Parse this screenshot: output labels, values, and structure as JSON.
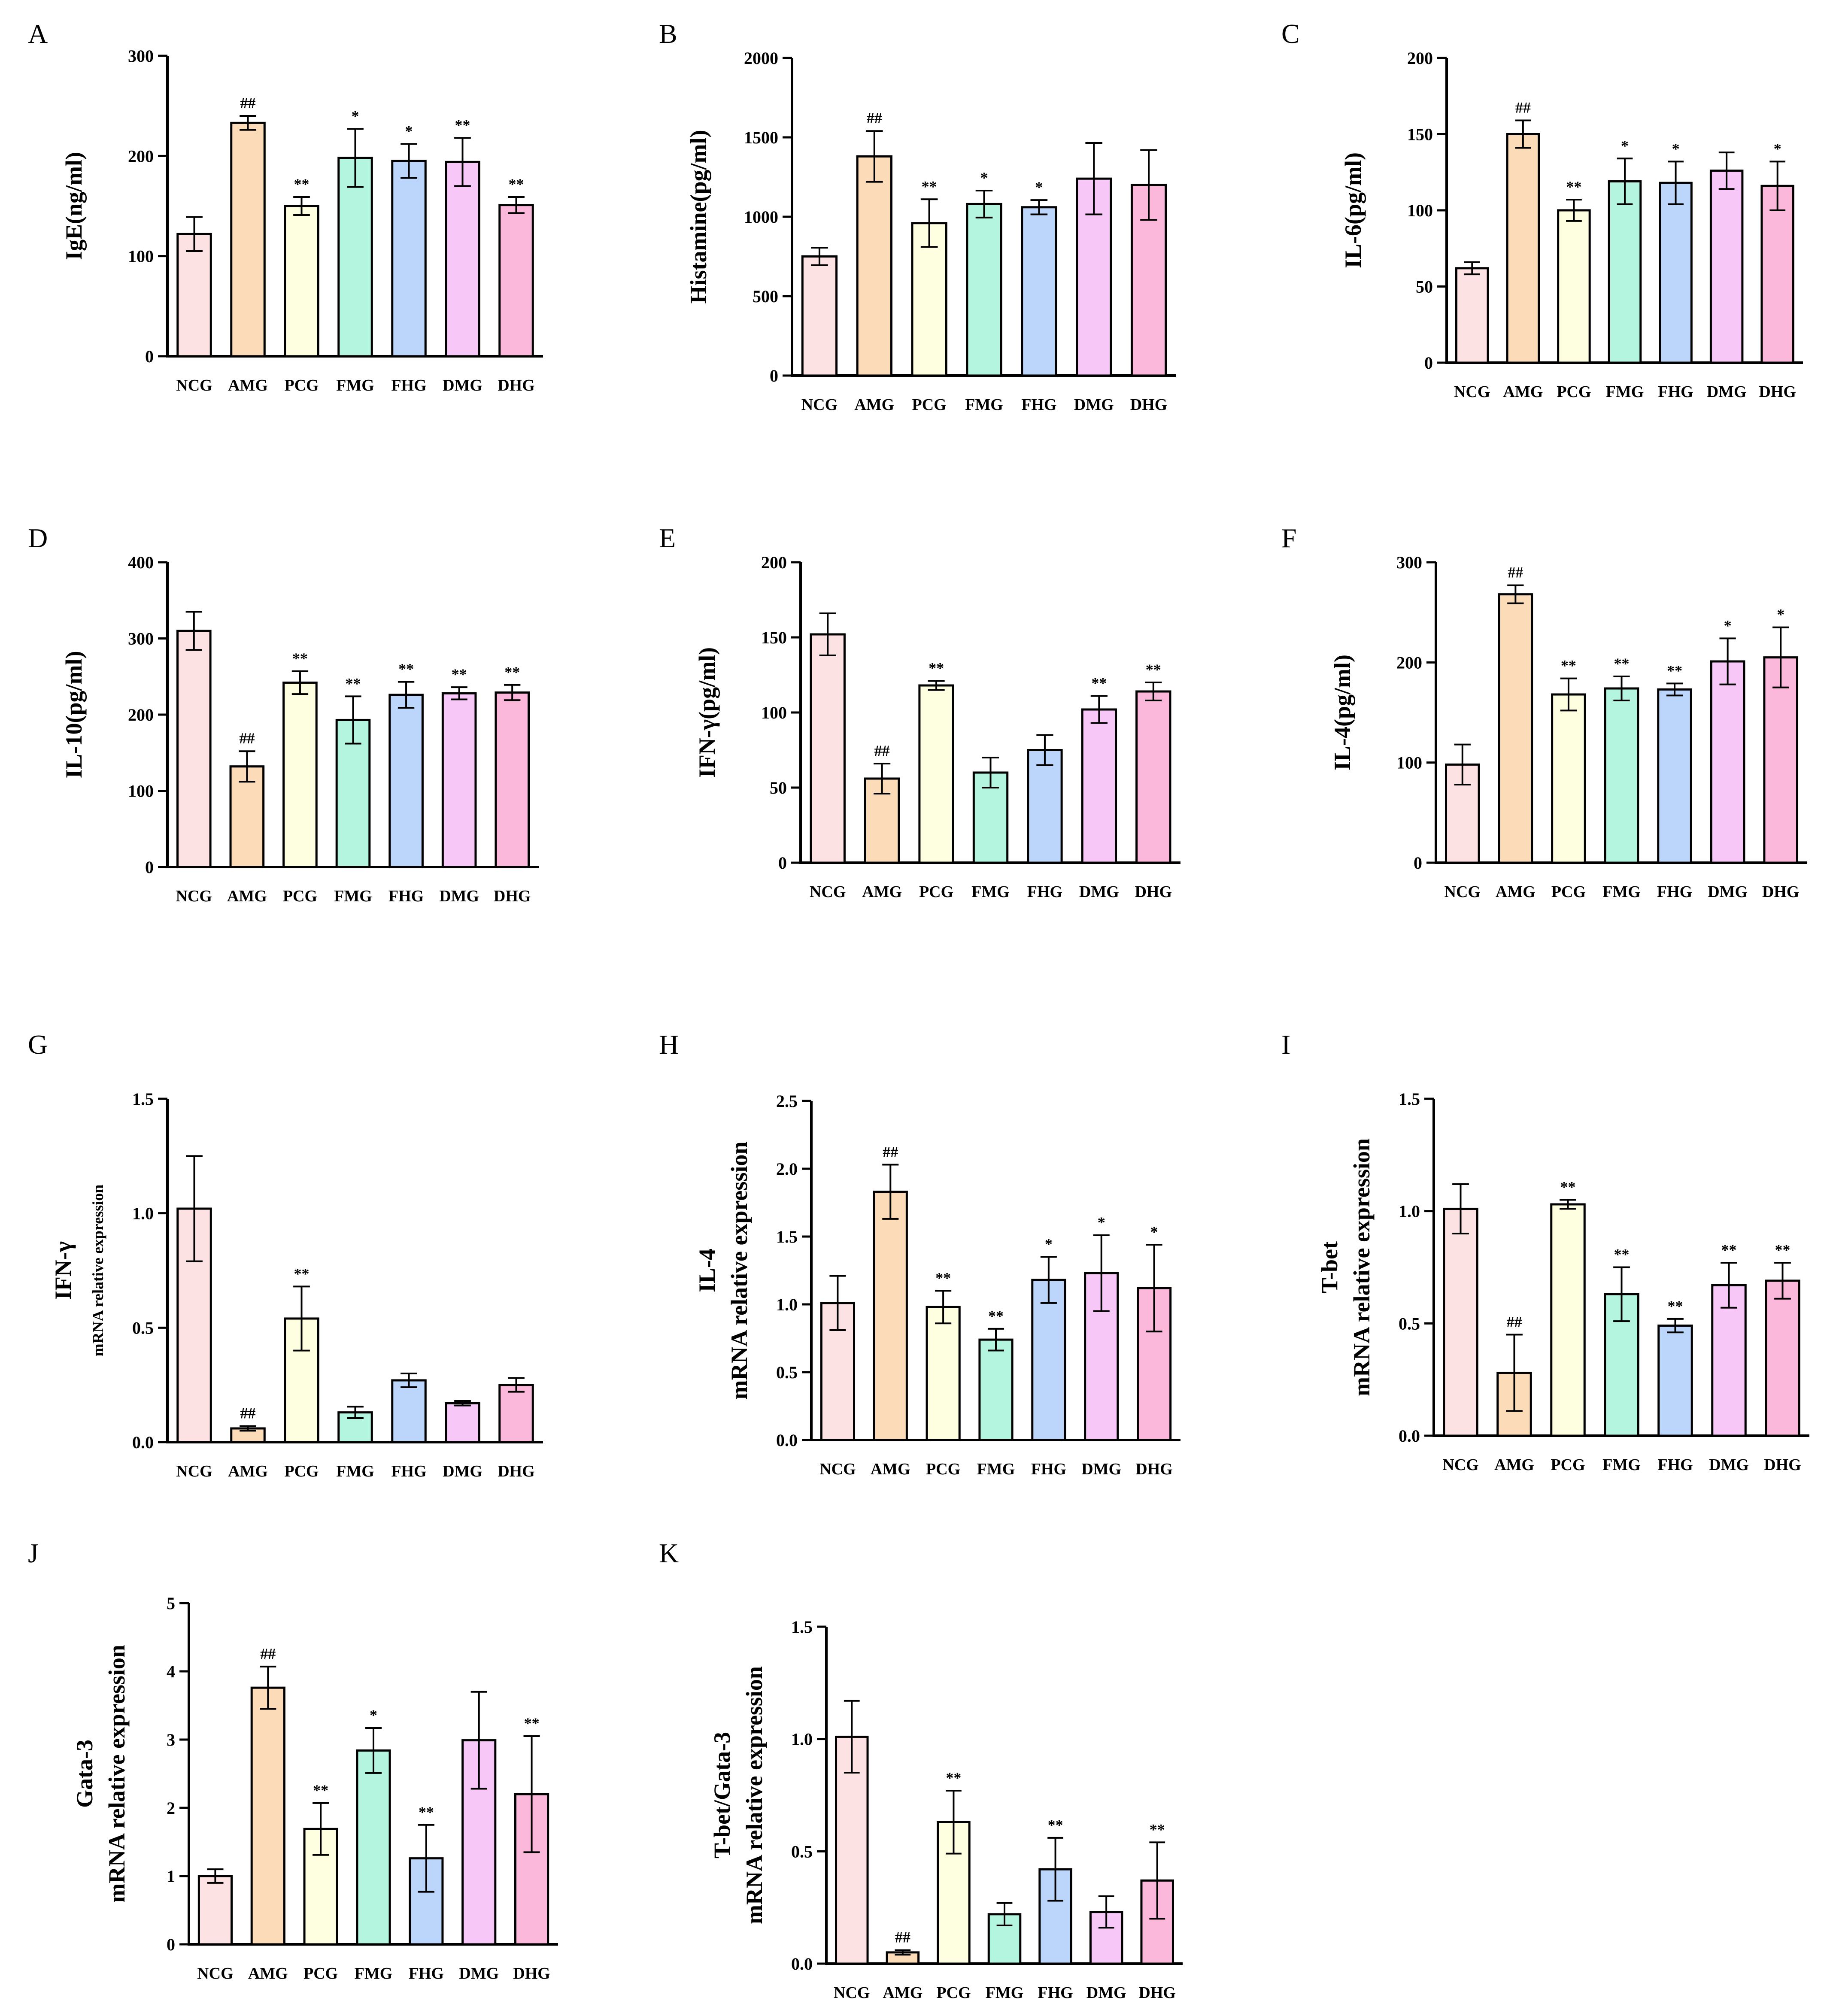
{
  "colors": {
    "NCG": "#fde2e4",
    "AMG": "#fcdcb8",
    "PCG": "#fefee0",
    "FMG": "#b4f5e0",
    "FHG": "#bcd6fb",
    "DMG": "#f7c8f7",
    "DHG": "#fbb8da"
  },
  "chart_data": [
    {
      "id": "A",
      "label": "A",
      "type": "bar",
      "ylabel": "IgE(ng/ml)",
      "ylabel2": "",
      "ylim": [
        0,
        300
      ],
      "yticks": [
        "0",
        "100",
        "200",
        "300"
      ],
      "categories": [
        "NCG",
        "AMG",
        "PCG",
        "FMG",
        "FHG",
        "DMG",
        "DHG"
      ],
      "values": [
        122,
        233,
        150,
        198,
        195,
        194,
        151
      ],
      "errors": [
        17,
        7,
        9,
        29,
        17,
        24,
        8
      ],
      "annotations": [
        "",
        "##",
        "**",
        "*",
        "*",
        "**",
        "**"
      ]
    },
    {
      "id": "B",
      "label": "B",
      "type": "bar",
      "ylabel": "Histamine(pg/ml)",
      "ylabel2": "",
      "ylim": [
        0,
        2000
      ],
      "yticks": [
        "0",
        "500",
        "1000",
        "1500",
        "2000"
      ],
      "categories": [
        "NCG",
        "AMG",
        "PCG",
        "FMG",
        "FHG",
        "DMG",
        "DHG"
      ],
      "values": [
        750,
        1380,
        960,
        1080,
        1060,
        1240,
        1200
      ],
      "errors": [
        55,
        160,
        150,
        85,
        45,
        225,
        220
      ],
      "annotations": [
        "",
        "##",
        "**",
        "*",
        "*",
        "",
        ""
      ]
    },
    {
      "id": "C",
      "label": "C",
      "type": "bar",
      "ylabel": "IL-6(pg/ml)",
      "ylabel2": "",
      "ylim": [
        0,
        200
      ],
      "yticks": [
        "0",
        "50",
        "100",
        "150",
        "200"
      ],
      "categories": [
        "NCG",
        "AMG",
        "PCG",
        "FMG",
        "FHG",
        "DMG",
        "DHG"
      ],
      "values": [
        62,
        150,
        100,
        119,
        118,
        126,
        116
      ],
      "errors": [
        4,
        9,
        7,
        15,
        14,
        12,
        16
      ],
      "annotations": [
        "",
        "##",
        "**",
        "*",
        "*",
        "",
        "*"
      ]
    },
    {
      "id": "D",
      "label": "D",
      "type": "bar",
      "ylabel": "IL-10(pg/ml)",
      "ylabel2": "",
      "ylim": [
        0,
        400
      ],
      "yticks": [
        "0",
        "100",
        "200",
        "300",
        "400"
      ],
      "categories": [
        "NCG",
        "AMG",
        "PCG",
        "FMG",
        "FHG",
        "DMG",
        "DHG"
      ],
      "values": [
        310,
        132,
        242,
        193,
        226,
        228,
        229
      ],
      "errors": [
        25,
        20,
        15,
        31,
        17,
        8,
        10
      ],
      "annotations": [
        "",
        "##",
        "**",
        "**",
        "**",
        "**",
        "**"
      ]
    },
    {
      "id": "E",
      "label": "E",
      "type": "bar",
      "ylabel": "IFN-γ(pg/ml)",
      "ylabel2": "",
      "ylim": [
        0,
        200
      ],
      "yticks": [
        "0",
        "50",
        "100",
        "150",
        "200"
      ],
      "categories": [
        "NCG",
        "AMG",
        "PCG",
        "FMG",
        "FHG",
        "DMG",
        "DHG"
      ],
      "values": [
        152,
        56,
        118,
        60,
        75,
        102,
        114
      ],
      "errors": [
        14,
        10,
        3,
        10,
        10,
        9,
        6
      ],
      "annotations": [
        "",
        "##",
        "**",
        "",
        "",
        "**",
        "**"
      ]
    },
    {
      "id": "F",
      "label": "F",
      "type": "bar",
      "ylabel": "IL-4(pg/ml)",
      "ylabel2": "",
      "ylim": [
        0,
        300
      ],
      "yticks": [
        "0",
        "100",
        "200",
        "300"
      ],
      "categories": [
        "NCG",
        "AMG",
        "PCG",
        "FMG",
        "FHG",
        "DMG",
        "DHG"
      ],
      "values": [
        98,
        268,
        168,
        174,
        173,
        201,
        205
      ],
      "errors": [
        20,
        9,
        16,
        12,
        6,
        23,
        30
      ],
      "annotations": [
        "",
        "##",
        "**",
        "**",
        "**",
        "*",
        "*"
      ]
    },
    {
      "id": "G",
      "label": "G",
      "type": "bar",
      "ylabel": "IFN-γ",
      "ylabel2": "mRNA relative expression",
      "ylim": [
        0,
        1.5
      ],
      "yticks": [
        "0.0",
        "0.5",
        "1.0",
        "1.5"
      ],
      "categories": [
        "NCG",
        "AMG",
        "PCG",
        "FMG",
        "FHG",
        "DMG",
        "DHG"
      ],
      "values": [
        1.02,
        0.06,
        0.54,
        0.13,
        0.27,
        0.17,
        0.25
      ],
      "errors": [
        0.23,
        0.01,
        0.14,
        0.025,
        0.03,
        0.01,
        0.03
      ],
      "annotations": [
        "",
        "##",
        "**",
        "",
        "",
        "",
        ""
      ]
    },
    {
      "id": "H",
      "label": "H",
      "type": "bar",
      "ylabel": "IL-4",
      "ylabel2": "mRNA relative expression",
      "ylim": [
        0,
        2.5
      ],
      "yticks": [
        "0.0",
        "0.5",
        "1.0",
        "1.5",
        "2.0",
        "2.5"
      ],
      "categories": [
        "NCG",
        "AMG",
        "PCG",
        "FMG",
        "FHG",
        "DMG",
        "DHG"
      ],
      "values": [
        1.01,
        1.83,
        0.98,
        0.74,
        1.18,
        1.23,
        1.12
      ],
      "errors": [
        0.2,
        0.2,
        0.12,
        0.08,
        0.17,
        0.28,
        0.32
      ],
      "annotations": [
        "",
        "##",
        "**",
        "**",
        "*",
        "*",
        "*"
      ]
    },
    {
      "id": "I",
      "label": "I",
      "type": "bar",
      "ylabel": "T-bet",
      "ylabel2": "mRNA relative expression",
      "ylim": [
        0,
        1.5
      ],
      "yticks": [
        "0.0",
        "0.5",
        "1.0",
        "1.5"
      ],
      "categories": [
        "NCG",
        "AMG",
        "PCG",
        "FMG",
        "FHG",
        "DMG",
        "DHG"
      ],
      "values": [
        1.01,
        0.28,
        1.03,
        0.63,
        0.49,
        0.67,
        0.69
      ],
      "errors": [
        0.11,
        0.17,
        0.02,
        0.12,
        0.03,
        0.1,
        0.08
      ],
      "annotations": [
        "",
        "##",
        "**",
        "**",
        "**",
        "**",
        "**"
      ]
    },
    {
      "id": "J",
      "label": "J",
      "type": "bar",
      "ylabel": "Gata-3",
      "ylabel2": "mRNA relative expression",
      "ylim": [
        0,
        5
      ],
      "yticks": [
        "0",
        "1",
        "2",
        "3",
        "4",
        "5"
      ],
      "categories": [
        "NCG",
        "AMG",
        "PCG",
        "FMG",
        "FHG",
        "DMG",
        "DHG"
      ],
      "values": [
        1.0,
        3.76,
        1.69,
        2.84,
        1.26,
        2.99,
        2.2
      ],
      "errors": [
        0.1,
        0.31,
        0.38,
        0.33,
        0.49,
        0.71,
        0.85
      ],
      "annotations": [
        "",
        "##",
        "**",
        "*",
        "**",
        "",
        "**"
      ]
    },
    {
      "id": "K",
      "label": "K",
      "type": "bar",
      "ylabel": "T-bet/Gata-3",
      "ylabel2": "mRNA relative expression",
      "ylim": [
        0,
        1.5
      ],
      "yticks": [
        "0.0",
        "0.5",
        "1.0",
        "1.5"
      ],
      "categories": [
        "NCG",
        "AMG",
        "PCG",
        "FMG",
        "FHG",
        "DMG",
        "DHG"
      ],
      "values": [
        1.01,
        0.05,
        0.63,
        0.22,
        0.42,
        0.23,
        0.37
      ],
      "errors": [
        0.16,
        0.01,
        0.14,
        0.05,
        0.14,
        0.07,
        0.17
      ],
      "annotations": [
        "",
        "##",
        "**",
        "",
        "**",
        "",
        "**"
      ]
    }
  ]
}
